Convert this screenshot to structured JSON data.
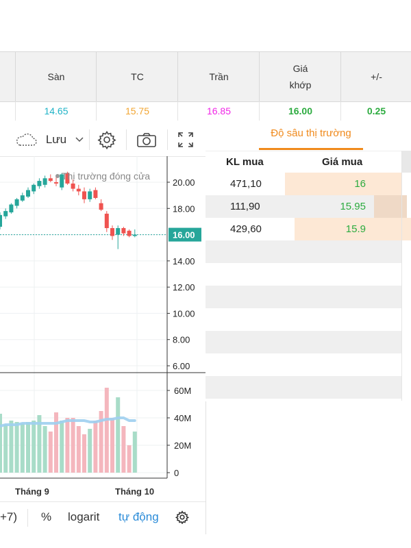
{
  "price_header": {
    "columns": [
      {
        "label": "Sàn",
        "value": "14.65",
        "color": "#1fb3c7"
      },
      {
        "label": "TC",
        "value": "15.75",
        "color": "#f2a531"
      },
      {
        "label": "Trần",
        "value": "16.85",
        "color": "#f025e6"
      },
      {
        "label_line1": "Giá",
        "label_line2": "khớp",
        "value": "16.00",
        "color": "#2cab3f"
      },
      {
        "label": "+/-",
        "value": "0.25",
        "color": "#2cab3f"
      }
    ]
  },
  "chart_toolbar": {
    "save_label": "Lưu",
    "icons": [
      "cloud-icon",
      "chevron-down-icon",
      "gear-icon",
      "camera-icon",
      "fullscreen-icon"
    ]
  },
  "chart": {
    "status_text": "Thị trường đóng cửa",
    "current_price_label": "16.00",
    "price_axis_labels": [
      "20.00",
      "18.00",
      "16.00",
      "14.00",
      "12.00",
      "10.00",
      "8.00",
      "6.00"
    ],
    "volume_axis_labels": [
      "60M",
      "40M",
      "20M",
      "0"
    ],
    "time_labels": [
      "Tháng 9",
      "Tháng 10"
    ],
    "colors": {
      "up": "#26a69a",
      "down": "#ef5350",
      "volume_up": "#a8dcc8",
      "volume_down": "#f4b6bd",
      "ma_line": "#9ecfef"
    }
  },
  "chart_data": {
    "type": "candlestick",
    "price_ylim": [
      6,
      21.5
    ],
    "volume_ylim": [
      0,
      70
    ],
    "candles": [
      {
        "o": 16.6,
        "h": 17.7,
        "l": 16.4,
        "c": 17.5
      },
      {
        "o": 17.4,
        "h": 18.0,
        "l": 17.2,
        "c": 17.8
      },
      {
        "o": 17.7,
        "h": 18.4,
        "l": 17.6,
        "c": 18.3
      },
      {
        "o": 18.2,
        "h": 18.8,
        "l": 18.0,
        "c": 18.7
      },
      {
        "o": 18.6,
        "h": 19.2,
        "l": 18.5,
        "c": 19.0
      },
      {
        "o": 18.9,
        "h": 19.6,
        "l": 18.8,
        "c": 19.4
      },
      {
        "o": 19.3,
        "h": 19.9,
        "l": 19.1,
        "c": 19.8
      },
      {
        "o": 19.7,
        "h": 20.3,
        "l": 19.5,
        "c": 20.1
      },
      {
        "o": 19.8,
        "h": 20.5,
        "l": 19.6,
        "c": 20.3
      },
      {
        "o": 20.3,
        "h": 20.6,
        "l": 20.0,
        "c": 20.1
      },
      {
        "o": 20.0,
        "h": 20.4,
        "l": 19.7,
        "c": 19.9
      },
      {
        "o": 19.6,
        "h": 20.7,
        "l": 19.4,
        "c": 20.6
      },
      {
        "o": 20.7,
        "h": 20.8,
        "l": 19.8,
        "c": 19.9
      },
      {
        "o": 19.9,
        "h": 20.2,
        "l": 19.3,
        "c": 19.5
      },
      {
        "o": 19.5,
        "h": 19.8,
        "l": 19.0,
        "c": 19.3
      },
      {
        "o": 19.3,
        "h": 19.6,
        "l": 18.4,
        "c": 18.7
      },
      {
        "o": 18.7,
        "h": 19.5,
        "l": 18.5,
        "c": 19.3
      },
      {
        "o": 19.4,
        "h": 19.6,
        "l": 18.7,
        "c": 18.8
      },
      {
        "o": 18.4,
        "h": 18.7,
        "l": 17.8,
        "c": 17.9
      },
      {
        "o": 17.6,
        "h": 17.8,
        "l": 16.2,
        "c": 16.5
      },
      {
        "o": 16.5,
        "h": 16.7,
        "l": 15.6,
        "c": 15.9
      },
      {
        "o": 16.0,
        "h": 16.7,
        "l": 14.9,
        "c": 16.5
      },
      {
        "o": 16.5,
        "h": 16.6,
        "l": 15.9,
        "c": 16.1
      },
      {
        "o": 16.3,
        "h": 16.4,
        "l": 15.8,
        "c": 15.9
      },
      {
        "o": 15.9,
        "h": 16.4,
        "l": 15.8,
        "c": 16.0
      }
    ],
    "volumes": [
      43,
      35,
      38,
      37,
      36,
      37,
      38,
      42,
      34,
      30,
      44,
      38,
      40,
      40,
      34,
      28,
      32,
      38,
      45,
      62,
      40,
      55,
      34,
      20,
      30
    ],
    "volume_ma": [
      34,
      35,
      35,
      35,
      36,
      36,
      36,
      36,
      36,
      36,
      36,
      37,
      38,
      38,
      38,
      38,
      37,
      37,
      38,
      39,
      39,
      40,
      40,
      38,
      38
    ]
  },
  "chart_bottombar": {
    "range_label": "+7)",
    "percent_label": "%",
    "log_label": "logarit",
    "auto_label": "tự động"
  },
  "market_depth": {
    "tab_label": "Độ sâu thị trường",
    "col_volume": "KL mua",
    "col_price": "Giá mua",
    "rows": [
      {
        "volume": "471,10",
        "price": "16",
        "fill": 0.58
      },
      {
        "volume": "111,90",
        "price": "15.95",
        "fill": 0.14
      },
      {
        "volume": "429,60",
        "price": "15.9",
        "fill": 0.53
      }
    ]
  }
}
